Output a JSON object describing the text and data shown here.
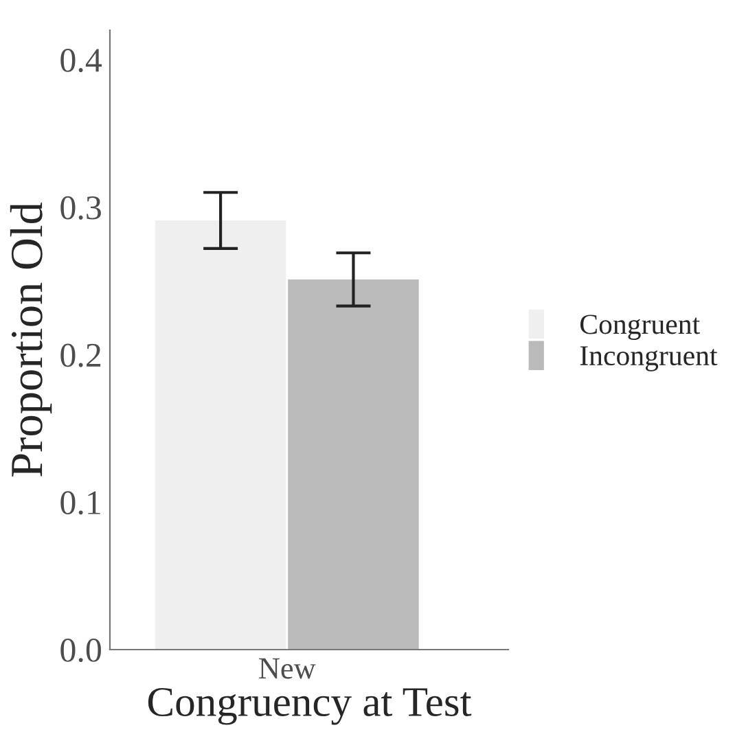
{
  "chart_data": {
    "type": "bar",
    "xlabel": "Congruency at Test",
    "ylabel": "Proportion Old",
    "categories": [
      "New"
    ],
    "series": [
      {
        "name": "Congruent",
        "color": "#efefef",
        "values": [
          0.291
        ],
        "errors": [
          0.019
        ]
      },
      {
        "name": "Incongruent",
        "color": "#bababa",
        "values": [
          0.251
        ],
        "errors": [
          0.018
        ]
      }
    ],
    "ylim": [
      0,
      0.42
    ],
    "yticks": [
      {
        "value": 0,
        "label": "0.0"
      },
      0.1,
      0.2,
      0.3,
      0.4
    ],
    "grid": false,
    "legend": "right"
  }
}
